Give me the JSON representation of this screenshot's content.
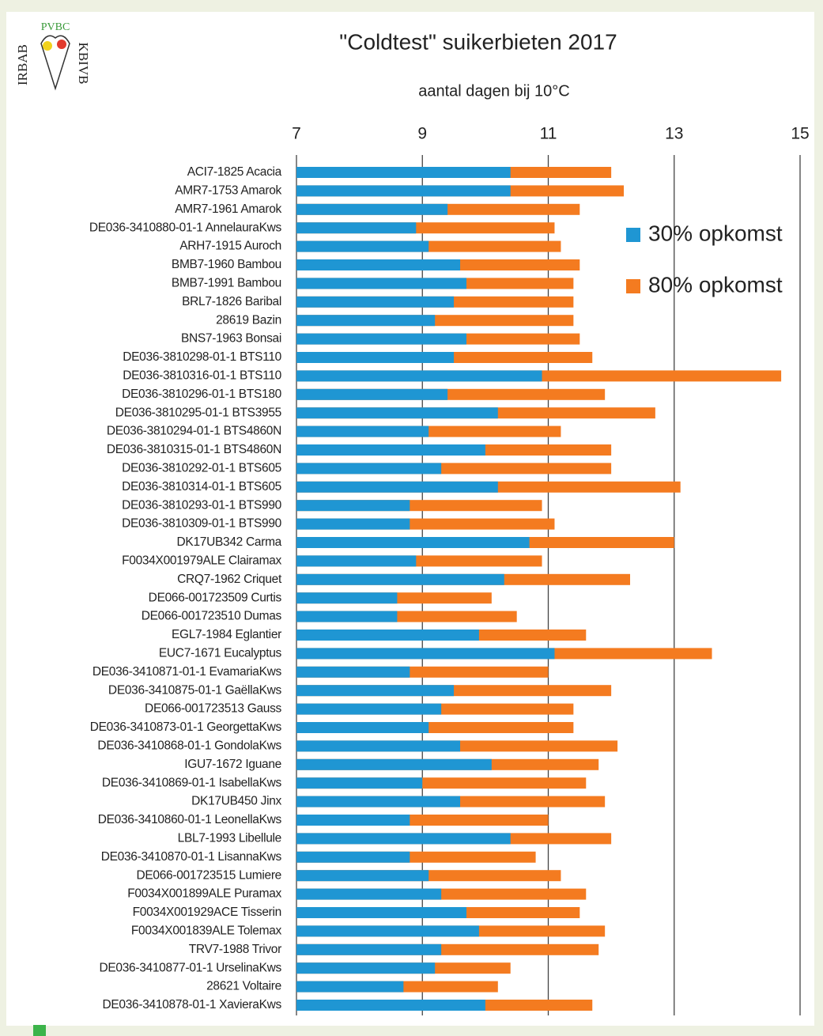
{
  "logo": {
    "left": "IRBAB",
    "top": "PVBC",
    "right": "KBIVB"
  },
  "chart_data": {
    "type": "bar",
    "orientation": "horizontal",
    "barmode": "overlay",
    "title": "\"Coldtest\" suikerbieten 2017",
    "subtitle": "aantal dagen bij 10°C",
    "categories": [
      "ACI7-1825 Acacia",
      "AMR7-1753 Amarok",
      "AMR7-1961 Amarok",
      "DE036-3410880-01-1 AnnelauraKws",
      "ARH7-1915 Auroch",
      "BMB7-1960 Bambou",
      "BMB7-1991 Bambou",
      "BRL7-1826 Baribal",
      "28619 Bazin",
      "BNS7-1963 Bonsai",
      "DE036-3810298-01-1 BTS110",
      "DE036-3810316-01-1 BTS110",
      "DE036-3810296-01-1 BTS180",
      "DE036-3810295-01-1 BTS3955",
      "DE036-3810294-01-1 BTS4860N",
      "DE036-3810315-01-1 BTS4860N",
      "DE036-3810292-01-1 BTS605",
      "DE036-3810314-01-1 BTS605",
      "DE036-3810293-01-1 BTS990",
      "DE036-3810309-01-1 BTS990",
      "DK17UB342 Carma",
      "F0034X001979ALE Clairamax",
      "CRQ7-1962 Criquet",
      "DE066-001723509 Curtis",
      "DE066-001723510 Dumas",
      "EGL7-1984 Eglantier",
      "EUC7-1671 Eucalyptus",
      "DE036-3410871-01-1 EvamariaKws",
      "DE036-3410875-01-1 GaëllaKws",
      "DE066-001723513 Gauss",
      "DE036-3410873-01-1 GeorgettaKws",
      "DE036-3410868-01-1 GondolaKws",
      "IGU7-1672 Iguane",
      "DE036-3410869-01-1 IsabellaKws",
      "DK17UB450 Jinx",
      "DE036-3410860-01-1 LeonellaKws",
      "LBL7-1993 Libellule",
      "DE036-3410870-01-1 LisannaKws",
      "DE066-001723515 Lumiere",
      "F0034X001899ALE Puramax",
      "F0034X001929ACE Tisserin",
      "F0034X001839ALE Tolemax",
      "TRV7-1988 Trivor",
      "DE036-3410877-01-1 UrselinaKws",
      "28621 Voltaire",
      "DE036-3410878-01-1 XavieraKws"
    ],
    "series": [
      {
        "name": "30% opkomst",
        "color": "#1f96d3",
        "values": [
          10.4,
          10.4,
          9.4,
          8.9,
          9.1,
          9.6,
          9.7,
          9.5,
          9.2,
          9.7,
          9.5,
          10.9,
          9.4,
          10.2,
          9.1,
          10.0,
          9.3,
          10.2,
          8.8,
          8.8,
          10.7,
          8.9,
          10.3,
          8.6,
          8.6,
          9.9,
          11.1,
          8.8,
          9.5,
          9.3,
          9.1,
          9.6,
          10.1,
          9.0,
          9.6,
          8.8,
          10.4,
          8.8,
          9.1,
          9.3,
          9.7,
          9.9,
          9.3,
          9.2,
          8.7,
          10.0
        ]
      },
      {
        "name": "80% opkomst",
        "color": "#f47b20",
        "values": [
          12.0,
          12.2,
          11.5,
          11.1,
          11.2,
          11.5,
          11.4,
          11.4,
          11.4,
          11.5,
          11.7,
          14.7,
          11.9,
          12.7,
          11.2,
          12.0,
          12.0,
          13.1,
          10.9,
          11.1,
          13.0,
          10.9,
          12.3,
          10.1,
          10.5,
          11.6,
          13.6,
          11.0,
          12.0,
          11.4,
          11.4,
          12.1,
          11.8,
          11.6,
          11.9,
          11.0,
          12.0,
          10.8,
          11.2,
          11.6,
          11.5,
          11.9,
          11.8,
          10.4,
          10.2,
          11.7
        ]
      }
    ],
    "xlim": [
      7,
      15
    ],
    "xticks": [
      7,
      9,
      11,
      13,
      15
    ],
    "grid": true,
    "legend": "right"
  }
}
